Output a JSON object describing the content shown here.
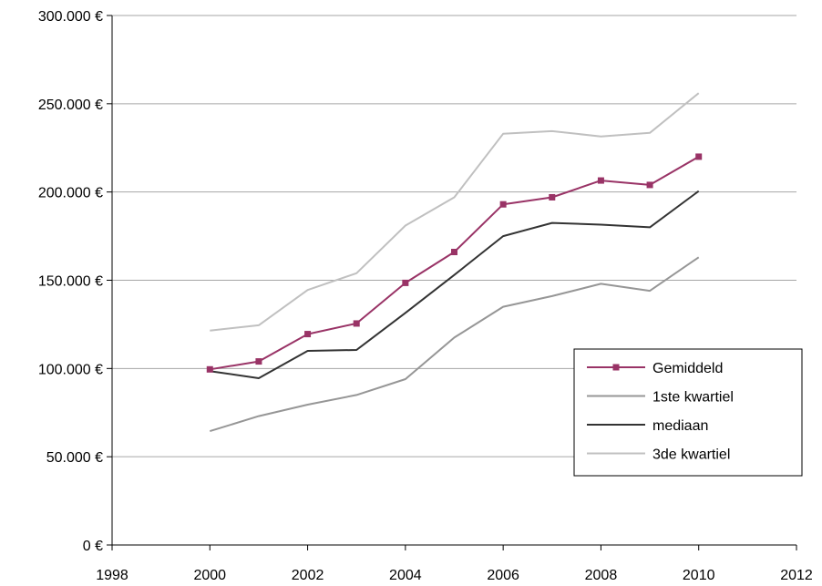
{
  "chart_data": {
    "type": "line",
    "title": "",
    "xlabel": "",
    "ylabel": "",
    "xlim": [
      1998,
      2012
    ],
    "ylim": [
      0,
      300000
    ],
    "x_ticks": [
      1998,
      2000,
      2002,
      2004,
      2006,
      2008,
      2010,
      2012
    ],
    "y_ticks": [
      0,
      50000,
      100000,
      150000,
      200000,
      250000,
      300000
    ],
    "x_tick_labels": [
      "1998",
      "2000",
      "2002",
      "2004",
      "2006",
      "2008",
      "2010",
      "2012"
    ],
    "y_tick_labels": [
      "0 €",
      "50.000 €",
      "100.000 €",
      "150.000 €",
      "200.000 €",
      "250.000 €",
      "300.000 €"
    ],
    "grid": "horizontal",
    "legend_position": "right",
    "x": [
      2000,
      2001,
      2002,
      2003,
      2004,
      2005,
      2006,
      2007,
      2008,
      2009,
      2010
    ],
    "series": [
      {
        "name": "Gemiddeld",
        "color": "#993366",
        "marker": "square",
        "values": [
          99500,
          104000,
          119500,
          125500,
          148500,
          166000,
          193000,
          197000,
          206500,
          204000,
          220000
        ]
      },
      {
        "name": "1ste kwartiel",
        "color": "#969696",
        "marker": "none",
        "values": [
          64500,
          73000,
          79500,
          85000,
          94000,
          117500,
          135000,
          141000,
          148000,
          144000,
          163000
        ]
      },
      {
        "name": "mediaan",
        "color": "#333333",
        "marker": "none",
        "values": [
          98500,
          94500,
          110000,
          110500,
          131500,
          153000,
          175000,
          182500,
          181500,
          180000,
          200500
        ]
      },
      {
        "name": "3de kwartiel",
        "color": "#c0c0c0",
        "marker": "none",
        "values": [
          121500,
          124500,
          144500,
          154000,
          181000,
          197000,
          233000,
          234500,
          231500,
          233500,
          256000
        ]
      }
    ]
  }
}
